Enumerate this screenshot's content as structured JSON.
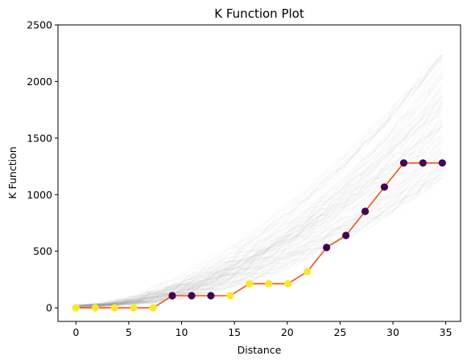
{
  "chart_data": {
    "type": "line",
    "title": "K Function Plot",
    "xlabel": "Distance",
    "ylabel": "K Function",
    "xlim": [
      -1.7,
      36.4
    ],
    "ylim": [
      -120,
      2500
    ],
    "xticks": [
      0,
      5,
      10,
      15,
      20,
      25,
      30,
      35
    ],
    "yticks": [
      0,
      500,
      1000,
      1500,
      2000,
      2500
    ],
    "grid": false,
    "legend": "none",
    "line_color": "#f0521a",
    "point_colors": {
      "low": "#fde725",
      "high": "#440154"
    },
    "series": [
      {
        "x": [
          0,
          1.82,
          3.65,
          5.47,
          7.3,
          9.12,
          10.95,
          12.77,
          14.6,
          16.42,
          18.25,
          20.07,
          21.9,
          23.72,
          25.55,
          27.37,
          29.19,
          31.02,
          32.84,
          34.67
        ],
        "y": [
          0,
          0,
          0,
          0,
          0,
          107,
          107,
          107,
          107,
          213,
          213,
          213,
          320,
          533,
          640,
          853,
          1067,
          1280,
          1280,
          1280
        ],
        "marker_class": [
          "low",
          "low",
          "low",
          "low",
          "low",
          "high",
          "high",
          "high",
          "low",
          "low",
          "low",
          "low",
          "low",
          "high",
          "high",
          "high",
          "high",
          "high",
          "high",
          "high"
        ]
      }
    ],
    "simulation_envelope": {
      "count": 99,
      "color": "#808080",
      "final_y_range": [
        1150,
        2300
      ]
    }
  }
}
